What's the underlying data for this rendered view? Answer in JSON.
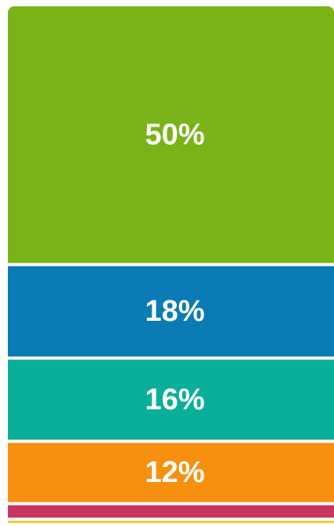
{
  "chart_data": {
    "type": "stacked_bar",
    "values": [
      50,
      18,
      16,
      12,
      3,
      1
    ],
    "value_labels": [
      "50%",
      "18%",
      "16%",
      "12%",
      null,
      null
    ],
    "colors": [
      "#7ab317",
      "#0a7bb5",
      "#0aaf9a",
      "#f7900f",
      "#c9335f",
      "#f5c518"
    ],
    "ylim": [
      0,
      100
    ]
  }
}
